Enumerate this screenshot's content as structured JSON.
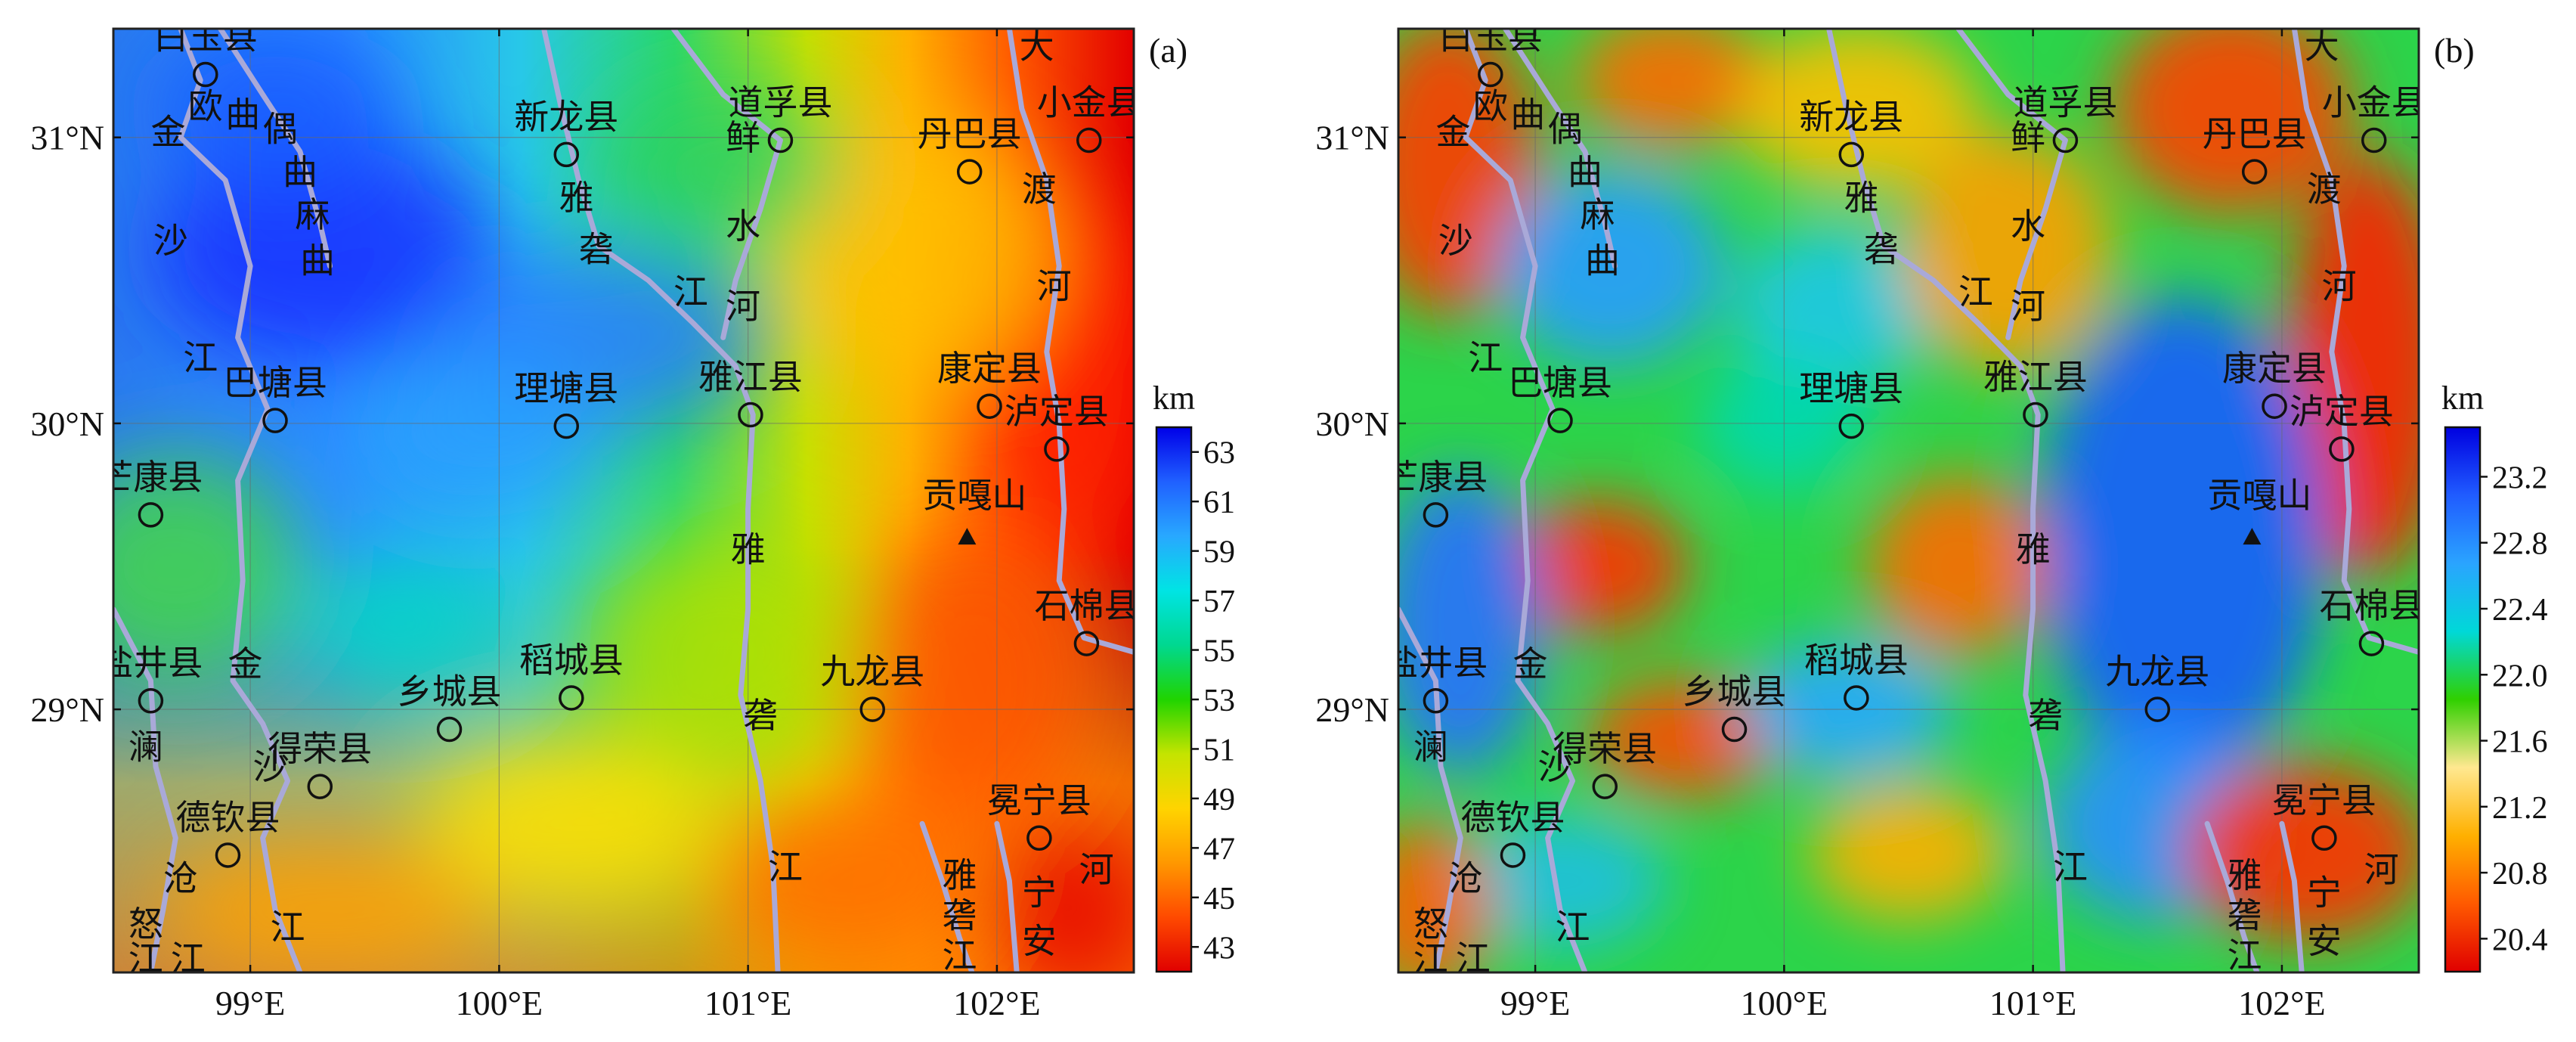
{
  "panels": [
    {
      "id": "a",
      "panel_label": "(a)",
      "unit": "km",
      "colorbar_ticks": [
        "63",
        "61",
        "59",
        "57",
        "55",
        "53",
        "51",
        "49",
        "47",
        "45",
        "43"
      ],
      "colorbar_range": [
        42,
        64
      ],
      "background_style": "depth"
    },
    {
      "id": "b",
      "panel_label": "(b)",
      "unit": "km",
      "colorbar_ticks": [
        "23.2",
        "22.8",
        "22.4",
        "22.0",
        "21.6",
        "21.2",
        "20.8",
        "20.4"
      ],
      "colorbar_range": [
        20.2,
        23.5
      ],
      "background_style": "bands"
    }
  ],
  "axes": {
    "lon_ticks": [
      {
        "lon": 99,
        "label": "99°E"
      },
      {
        "lon": 100,
        "label": "100°E"
      },
      {
        "lon": 101,
        "label": "101°E"
      },
      {
        "lon": 102,
        "label": "102°E"
      }
    ],
    "lat_ticks": [
      {
        "lat": 31,
        "label": "31°N"
      },
      {
        "lat": 30,
        "label": "30°N"
      },
      {
        "lat": 29,
        "label": "29°N"
      }
    ],
    "lon_range": [
      98.45,
      102.55
    ],
    "lat_range": [
      28.08,
      31.38
    ]
  },
  "counties": [
    {
      "name": "白玉县",
      "lon": 98.82,
      "lat": 31.22
    },
    {
      "name": "新龙县",
      "lon": 100.27,
      "lat": 30.94
    },
    {
      "name": "道孚县",
      "lon": 101.13,
      "lat": 30.99
    },
    {
      "name": "丹巴县",
      "lon": 101.89,
      "lat": 30.88
    },
    {
      "name": "小金县",
      "lon": 102.37,
      "lat": 30.99
    },
    {
      "name": "巴塘县",
      "lon": 99.1,
      "lat": 30.01
    },
    {
      "name": "理塘县",
      "lon": 100.27,
      "lat": 29.99
    },
    {
      "name": "雅江县",
      "lon": 101.01,
      "lat": 30.03
    },
    {
      "name": "康定县",
      "lon": 101.97,
      "lat": 30.06
    },
    {
      "name": "泸定县",
      "lon": 102.24,
      "lat": 29.91
    },
    {
      "name": "芒康县",
      "lon": 98.6,
      "lat": 29.68
    },
    {
      "name": "石棉县",
      "lon": 102.36,
      "lat": 29.23
    },
    {
      "name": "盐井县",
      "lon": 98.6,
      "lat": 29.03
    },
    {
      "name": "乡城县",
      "lon": 99.8,
      "lat": 28.93
    },
    {
      "name": "稻城县",
      "lon": 100.29,
      "lat": 29.04
    },
    {
      "name": "九龙县",
      "lon": 101.5,
      "lat": 29.0
    },
    {
      "name": "得荣县",
      "lon": 99.28,
      "lat": 28.73
    },
    {
      "name": "德钦县",
      "lon": 98.91,
      "lat": 28.49
    },
    {
      "name": "冕宁县",
      "lon": 102.17,
      "lat": 28.55
    }
  ],
  "peak": {
    "name": "贡嘎山",
    "lon": 101.88,
    "lat": 29.6
  },
  "river_glyphs": [
    {
      "t": "欧",
      "lon": 98.82,
      "lat": 31.1
    },
    {
      "t": "曲",
      "lon": 98.97,
      "lat": 31.07
    },
    {
      "t": "偶",
      "lon": 99.12,
      "lat": 31.02
    },
    {
      "t": "曲",
      "lon": 99.2,
      "lat": 30.87
    },
    {
      "t": "麻",
      "lon": 99.25,
      "lat": 30.72
    },
    {
      "t": "曲",
      "lon": 99.27,
      "lat": 30.56
    },
    {
      "t": "金",
      "lon": 98.67,
      "lat": 31.01
    },
    {
      "t": "沙",
      "lon": 98.68,
      "lat": 30.63
    },
    {
      "t": "江",
      "lon": 98.8,
      "lat": 30.22
    },
    {
      "t": "雅",
      "lon": 100.31,
      "lat": 30.78
    },
    {
      "t": "砻",
      "lon": 100.39,
      "lat": 30.6
    },
    {
      "t": "江",
      "lon": 100.77,
      "lat": 30.45
    },
    {
      "t": "鲜",
      "lon": 100.98,
      "lat": 30.99
    },
    {
      "t": "水",
      "lon": 100.98,
      "lat": 30.68
    },
    {
      "t": "河",
      "lon": 100.98,
      "lat": 30.4
    },
    {
      "t": "大",
      "lon": 102.16,
      "lat": 31.31
    },
    {
      "t": "渡",
      "lon": 102.17,
      "lat": 30.81
    },
    {
      "t": "河",
      "lon": 102.23,
      "lat": 30.47
    },
    {
      "t": "雅",
      "lon": 101.0,
      "lat": 29.55
    },
    {
      "t": "砻",
      "lon": 101.05,
      "lat": 28.97
    },
    {
      "t": "江",
      "lon": 101.15,
      "lat": 28.44
    },
    {
      "t": "金",
      "lon": 98.98,
      "lat": 29.15
    },
    {
      "t": "沙",
      "lon": 99.08,
      "lat": 28.79
    },
    {
      "t": "江",
      "lon": 99.15,
      "lat": 28.23
    },
    {
      "t": "澜",
      "lon": 98.58,
      "lat": 28.86
    },
    {
      "t": "沧",
      "lon": 98.72,
      "lat": 28.4
    },
    {
      "t": "怒",
      "lon": 98.58,
      "lat": 28.24
    },
    {
      "t": "江",
      "lon": 98.58,
      "lat": 28.12
    },
    {
      "t": "江",
      "lon": 98.75,
      "lat": 28.12
    },
    {
      "t": "雅",
      "lon": 101.85,
      "lat": 28.41
    },
    {
      "t": "砻",
      "lon": 101.85,
      "lat": 28.27
    },
    {
      "t": "江",
      "lon": 101.85,
      "lat": 28.13
    },
    {
      "t": "宁",
      "lon": 102.17,
      "lat": 28.35
    },
    {
      "t": "安",
      "lon": 102.17,
      "lat": 28.18
    },
    {
      "t": "河",
      "lon": 102.4,
      "lat": 28.43
    }
  ],
  "rivers": [
    {
      "name": "金沙江",
      "pts": [
        [
          98.72,
          31.38
        ],
        [
          98.8,
          31.2
        ],
        [
          98.72,
          31.0
        ],
        [
          98.9,
          30.85
        ],
        [
          99.0,
          30.55
        ],
        [
          98.95,
          30.3
        ],
        [
          99.07,
          30.05
        ],
        [
          98.95,
          29.8
        ],
        [
          98.97,
          29.45
        ],
        [
          98.93,
          29.1
        ],
        [
          99.05,
          28.95
        ],
        [
          99.15,
          28.75
        ],
        [
          99.05,
          28.55
        ],
        [
          99.1,
          28.3
        ],
        [
          99.2,
          28.08
        ]
      ]
    },
    {
      "name": "偶曲",
      "pts": [
        [
          98.88,
          31.38
        ],
        [
          99.05,
          31.15
        ],
        [
          99.2,
          30.95
        ],
        [
          99.28,
          30.7
        ],
        [
          99.32,
          30.55
        ]
      ]
    },
    {
      "name": "雅砻江",
      "pts": [
        [
          100.18,
          31.38
        ],
        [
          100.25,
          31.1
        ],
        [
          100.32,
          30.85
        ],
        [
          100.4,
          30.62
        ],
        [
          100.6,
          30.5
        ],
        [
          100.78,
          30.35
        ],
        [
          100.95,
          30.2
        ],
        [
          101.02,
          30.03
        ],
        [
          101.0,
          29.7
        ],
        [
          101.0,
          29.35
        ],
        [
          100.97,
          29.05
        ],
        [
          101.05,
          28.75
        ],
        [
          101.1,
          28.45
        ],
        [
          101.12,
          28.08
        ]
      ]
    },
    {
      "name": "鲜水河",
      "pts": [
        [
          100.7,
          31.38
        ],
        [
          100.9,
          31.15
        ],
        [
          101.13,
          30.99
        ],
        [
          101.05,
          30.75
        ],
        [
          100.95,
          30.5
        ],
        [
          100.9,
          30.3
        ]
      ]
    },
    {
      "name": "大渡河",
      "pts": [
        [
          102.05,
          31.38
        ],
        [
          102.1,
          31.1
        ],
        [
          102.2,
          30.85
        ],
        [
          102.25,
          30.55
        ],
        [
          102.2,
          30.25
        ],
        [
          102.25,
          30.0
        ],
        [
          102.27,
          29.7
        ],
        [
          102.25,
          29.45
        ],
        [
          102.35,
          29.25
        ],
        [
          102.55,
          29.2
        ]
      ]
    },
    {
      "name": "安宁河",
      "pts": [
        [
          102.0,
          28.6
        ],
        [
          102.05,
          28.4
        ],
        [
          102.08,
          28.08
        ]
      ]
    },
    {
      "name": "雅砻江下游",
      "pts": [
        [
          101.7,
          28.6
        ],
        [
          101.78,
          28.4
        ],
        [
          101.85,
          28.2
        ],
        [
          101.9,
          28.08
        ]
      ]
    },
    {
      "name": "澜沧江",
      "pts": [
        [
          98.45,
          29.35
        ],
        [
          98.6,
          29.1
        ],
        [
          98.62,
          28.8
        ],
        [
          98.7,
          28.55
        ],
        [
          98.65,
          28.3
        ],
        [
          98.6,
          28.08
        ]
      ]
    }
  ],
  "palette": {
    "a_scale": [
      "#e00000",
      "#ff4a00",
      "#ff9800",
      "#ffd400",
      "#c4e400",
      "#20d400",
      "#00d890",
      "#00e4e4",
      "#28a8ff",
      "#2060ff",
      "#0000e8"
    ],
    "b_scale": [
      "#e00000",
      "#ff5a00",
      "#ffb000",
      "#ffe890",
      "#30d000",
      "#00d8d8",
      "#2aa4ff",
      "#205cff",
      "#0000e0"
    ],
    "river": "#a9a9d8",
    "frame": "#222222"
  }
}
